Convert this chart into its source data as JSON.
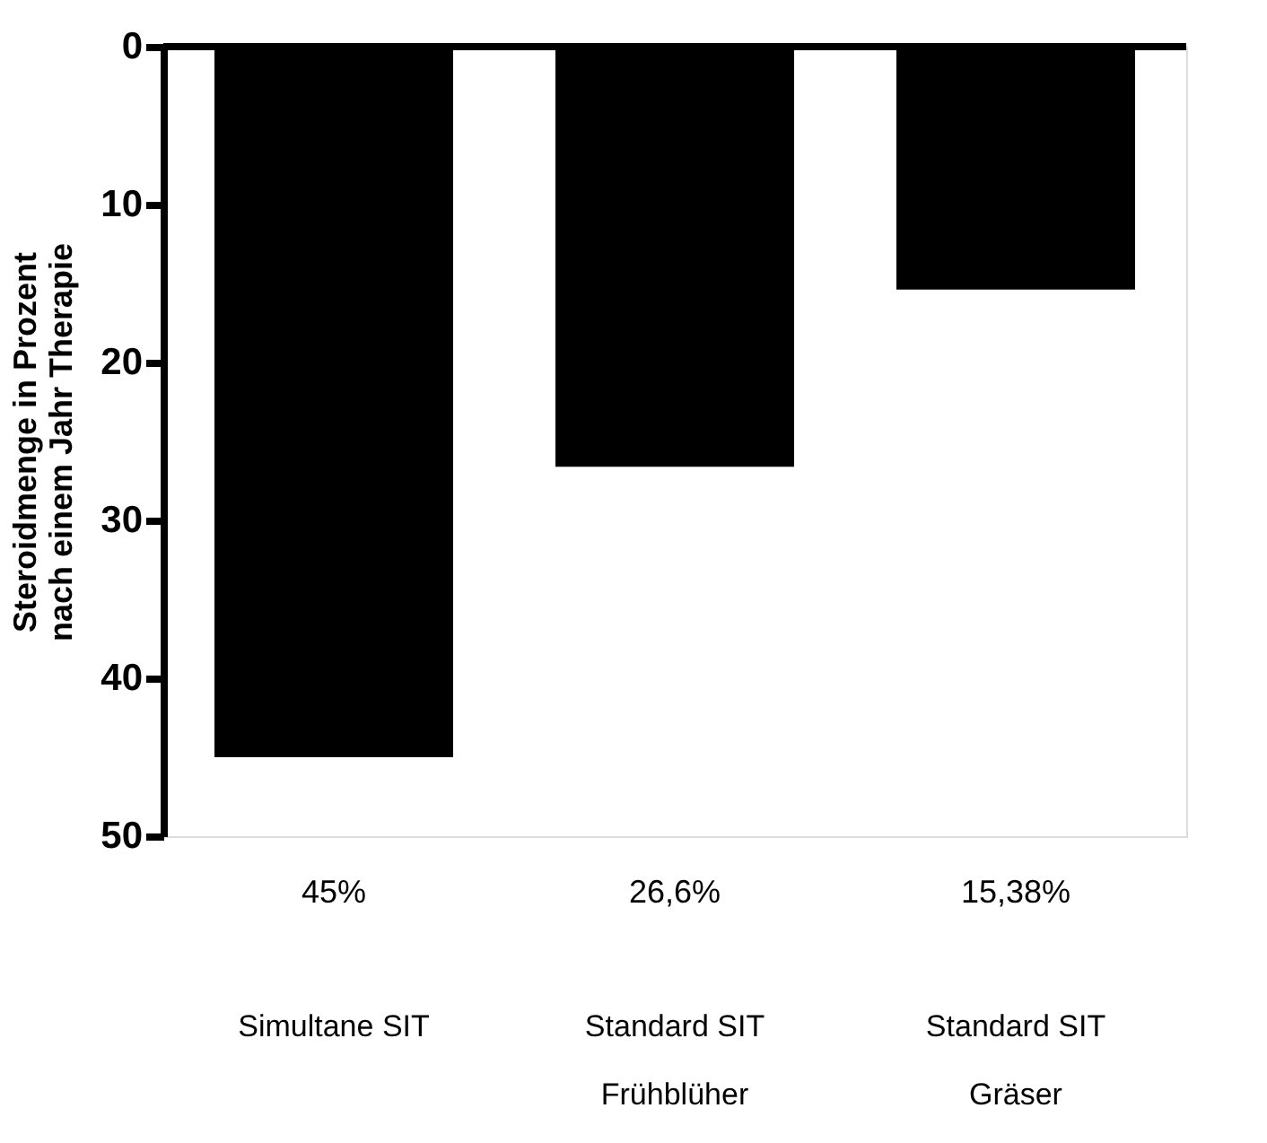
{
  "chart_data": {
    "type": "bar",
    "ylabel": "Steroidmenge in Prozent\nnach einem Jahr Therapie",
    "categories": [
      "Simultane SIT",
      "Standard SIT\nFrühblüher",
      "Standard SIT\nGräser"
    ],
    "values": [
      45,
      26.6,
      15.38
    ],
    "color": "#000000",
    "value_labels": [
      "45%",
      "26,6%",
      "15,38%"
    ],
    "ylim": [
      50,
      0
    ],
    "yticks": [
      0,
      10,
      20,
      30,
      40,
      50
    ]
  }
}
